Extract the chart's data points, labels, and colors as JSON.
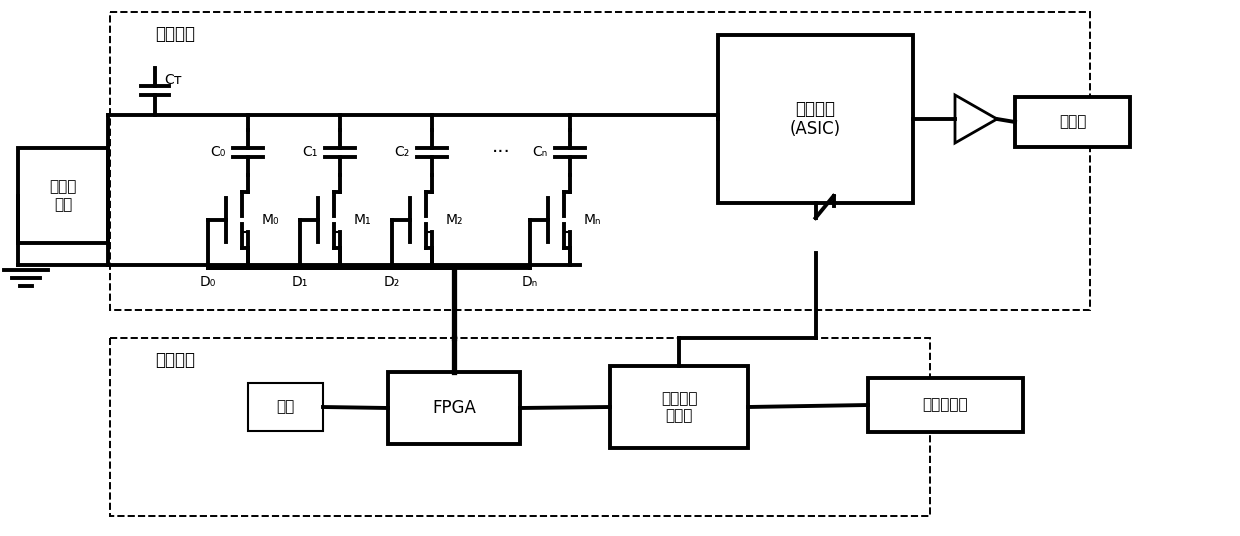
{
  "bg_color": "#ffffff",
  "sub_board_label": "测试子板",
  "main_board_label": "测试母板",
  "signal_gen_label": "信号发\n生器",
  "asic_label": "被测芯片\n(ASIC)",
  "oscilloscope_label": "示波器",
  "fpga_label": "FPGA",
  "crystal_label": "晶振",
  "power_label": "电源及偏\n置产生",
  "high_power_label": "高精度电源",
  "CT_label": "Cᴛ",
  "C0_label": "C₀",
  "C1_label": "C₁",
  "C2_label": "C₂",
  "Cn_label": "Cₙ",
  "M0_label": "M₀",
  "M1_label": "M₁",
  "M2_label": "M₂",
  "Mn_label": "Mₙ",
  "D0_label": "D₀",
  "D1_label": "D₁",
  "D2_label": "D₂",
  "Dn_label": "Dₙ",
  "dots_label": "···"
}
